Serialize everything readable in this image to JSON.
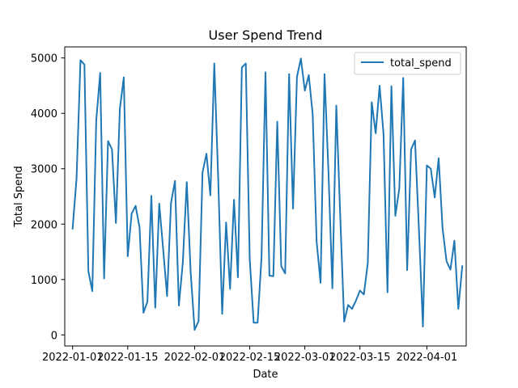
{
  "chart_data": {
    "type": "line",
    "title": "User Spend Trend",
    "xlabel": "Date",
    "ylabel": "Total Spend",
    "x_type": "date",
    "xlim": [
      "2021-12-30",
      "2022-04-11"
    ],
    "ylim": [
      -200,
      5200
    ],
    "x_ticks": [
      "2022-01-01",
      "2022-01-15",
      "2022-02-01",
      "2022-02-15",
      "2022-03-01",
      "2022-03-15",
      "2022-04-01"
    ],
    "x_tick_labels": [
      "2022-01-01",
      "2022-01-15",
      "2022-02-01",
      "2022-02-15",
      "2022-03-01",
      "2022-03-15",
      "2022-04-01"
    ],
    "y_ticks": [
      0,
      1000,
      2000,
      3000,
      4000,
      5000
    ],
    "y_tick_labels": [
      "0",
      "1000",
      "2000",
      "3000",
      "4000",
      "5000"
    ],
    "grid": false,
    "legend_position": "top-right",
    "color": "#1f77b4",
    "series": [
      {
        "name": "total_spend",
        "x": [
          "2022-01-01",
          "2022-01-02",
          "2022-01-03",
          "2022-01-04",
          "2022-01-05",
          "2022-01-06",
          "2022-01-07",
          "2022-01-08",
          "2022-01-09",
          "2022-01-10",
          "2022-01-11",
          "2022-01-12",
          "2022-01-13",
          "2022-01-14",
          "2022-01-15",
          "2022-01-16",
          "2022-01-17",
          "2022-01-18",
          "2022-01-19",
          "2022-01-20",
          "2022-01-21",
          "2022-01-22",
          "2022-01-23",
          "2022-01-24",
          "2022-01-25",
          "2022-01-26",
          "2022-01-27",
          "2022-01-28",
          "2022-01-29",
          "2022-01-30",
          "2022-01-31",
          "2022-02-01",
          "2022-02-02",
          "2022-02-03",
          "2022-02-04",
          "2022-02-05",
          "2022-02-06",
          "2022-02-07",
          "2022-02-08",
          "2022-02-09",
          "2022-02-10",
          "2022-02-11",
          "2022-02-12",
          "2022-02-13",
          "2022-02-14",
          "2022-02-15",
          "2022-02-16",
          "2022-02-17",
          "2022-02-18",
          "2022-02-19",
          "2022-02-20",
          "2022-02-21",
          "2022-02-22",
          "2022-02-23",
          "2022-02-24",
          "2022-02-25",
          "2022-02-26",
          "2022-02-27",
          "2022-02-28",
          "2022-03-01",
          "2022-03-02",
          "2022-03-03",
          "2022-03-04",
          "2022-03-05",
          "2022-03-06",
          "2022-03-07",
          "2022-03-08",
          "2022-03-09",
          "2022-03-10",
          "2022-03-11",
          "2022-03-12",
          "2022-03-13",
          "2022-03-14",
          "2022-03-15",
          "2022-03-16",
          "2022-03-17",
          "2022-03-18",
          "2022-03-19",
          "2022-03-20",
          "2022-03-21",
          "2022-03-22",
          "2022-03-23",
          "2022-03-24",
          "2022-03-25",
          "2022-03-26",
          "2022-03-27",
          "2022-03-28",
          "2022-03-29",
          "2022-03-30",
          "2022-03-31",
          "2022-04-01",
          "2022-04-02",
          "2022-04-03",
          "2022-04-04",
          "2022-04-05",
          "2022-04-06",
          "2022-04-07",
          "2022-04-08",
          "2022-04-09",
          "2022-04-10"
        ],
        "values": [
          1920,
          2830,
          4960,
          4880,
          1150,
          790,
          3870,
          4730,
          1020,
          3500,
          3350,
          2020,
          4080,
          4650,
          1420,
          2190,
          2330,
          1940,
          400,
          600,
          2510,
          490,
          2370,
          1550,
          700,
          2380,
          2780,
          530,
          1310,
          2760,
          1120,
          90,
          250,
          2930,
          3270,
          2520,
          4900,
          2800,
          380,
          2030,
          830,
          2440,
          1040,
          4830,
          4900,
          1370,
          220,
          220,
          1410,
          4740,
          1070,
          1060,
          3850,
          1240,
          1110,
          4710,
          2280,
          4660,
          4990,
          4410,
          4690,
          3980,
          1680,
          940,
          4710,
          2960,
          840,
          4140,
          2140,
          240,
          540,
          470,
          620,
          800,
          730,
          1300,
          4200,
          3640,
          4500,
          3620,
          770,
          4490,
          2150,
          2640,
          4640,
          1170,
          3350,
          3510,
          1890,
          150,
          3060,
          3000,
          2480,
          3190,
          1920,
          1330,
          1180,
          1700,
          470,
          1240
        ]
      }
    ]
  }
}
